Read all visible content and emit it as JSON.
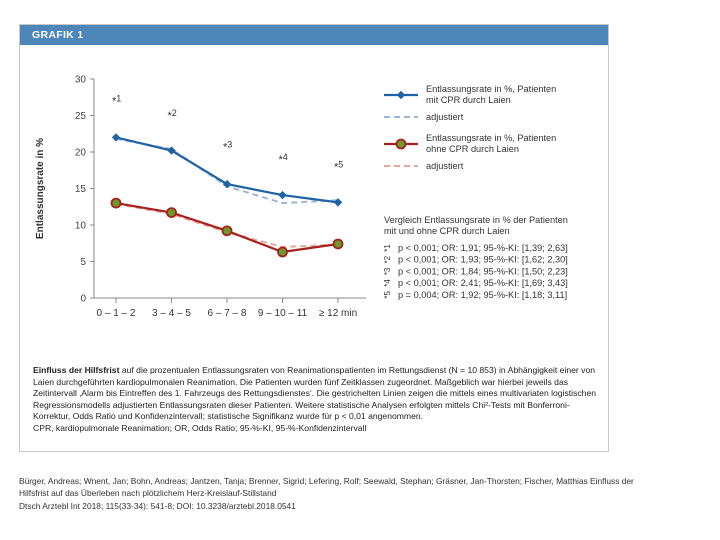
{
  "figure": {
    "header": "GRAFIK 1",
    "caption_bold": "Einfluss der Hilfsfrist",
    "caption_text": " auf die prozentualen Entlassungsraten von Reanimationspatienten im Rettungsdienst (N = 10 853) in Abhängigkeit einer von Laien durchgeführten kardiopulmonalen Reanimation. Die Patienten wurden fünf Zeitklassen zugeordnet. Maßgeblich war hierbei jeweils das Zeitintervall ‚Alarm bis Eintreffen des 1. Fahrzeugs des Rettungsdienstes‘. Die gestrichelten Linien zeigen die mittels eines multivariaten logistischen Regressionsmodells adjustierten Entlassungsraten dieser Patienten. Weitere statistische Analysen erfolgten mittels Chi²-Tests mit Bonferroni-Korrektur, Odds Ratio und Konfidenzintervall; statistische Signifikanz wurde für p < 0,01 angenommen.",
    "caption_abbrev": "CPR, kardiopulmonale Reanimation; OR, Odds Ratio; 95-%-KI, 95-%-Konfidenzintervall"
  },
  "citation": {
    "line1": "Bürger, Andreas; Wnent, Jan; Bohn, Andreas; Jantzen, Tanja; Brenner, Sigrid; Lefering, Rolf; Seewald, Stephan; Gräsner, Jan-Thorsten; Fischer, Matthias Einfluss der",
    "line2": "Hilfsfrist auf das Überleben nach plötzlichem Herz-Kreislauf-Stillstand",
    "line3": "Dtsch Arztebl Int 2018; 115(33-34): 541-8; DOI: 10.3238/arztebl.2018.0541"
  },
  "colors": {
    "header_bg": "#4d87b9",
    "blue": "#1f63a5",
    "blue_dash": "#9bb7d8",
    "red": "#a8211e",
    "red_dash": "#e8a89c",
    "green_marker": "#6c9a2a"
  },
  "chart_data": {
    "type": "line",
    "categories": [
      "0 – 1 – 2",
      "3 – 4 – 5",
      "6 – 7 – 8",
      "9 – 10 – 11",
      "≥ 12 min"
    ],
    "ylabel": "Entlassungsrate in %",
    "xlabel": "",
    "ylim": [
      0,
      30
    ],
    "yticks": [
      0,
      5,
      10,
      15,
      20,
      25,
      30
    ],
    "grid": false,
    "legend_position": "top-right",
    "series": [
      {
        "name": "Entlassungsrate in %, Patienten mit CPR durch Laien",
        "name_lines": [
          "Entlassungsrate in %, Patienten",
          "mit CPR durch Laien"
        ],
        "values": [
          22.0,
          20.2,
          15.6,
          14.1,
          13.1
        ],
        "style": "solid-blue"
      },
      {
        "name": "adjustiert",
        "name_lines": [
          "adjustiert"
        ],
        "values": [
          21.8,
          20.4,
          15.3,
          13.0,
          13.4
        ],
        "style": "dashed-blue"
      },
      {
        "name": "Entlassungsrate in %, Patienten ohne CPR durch Laien",
        "name_lines": [
          "Entlassungsrate in %, Patienten",
          "ohne CPR durch Laien"
        ],
        "values": [
          13.0,
          11.7,
          9.2,
          6.3,
          7.4
        ],
        "style": "solid-red"
      },
      {
        "name": "adjustiert",
        "name_lines": [
          "adjustiert"
        ],
        "values": [
          12.9,
          11.5,
          9.0,
          7.0,
          7.3
        ],
        "style": "dashed-red"
      }
    ],
    "annotations": [
      {
        "label": "*1",
        "category_index": 0,
        "y": 26.5
      },
      {
        "label": "*2",
        "category_index": 1,
        "y": 24.5
      },
      {
        "label": "*3",
        "category_index": 2,
        "y": 20.2
      },
      {
        "label": "*4",
        "category_index": 3,
        "y": 18.5
      },
      {
        "label": "*5",
        "category_index": 4,
        "y": 17.5
      }
    ],
    "stats_title": [
      "Vergleich Entlassungsrate in % der Patienten",
      "mit und ohne CPR durch Laien"
    ],
    "stats": [
      {
        "marker": "*1",
        "text": "p < 0,001; OR: 1,91; 95-%-KI: [1,39; 2,63]"
      },
      {
        "marker": "*2",
        "text": "p < 0,001; OR: 1,93; 95-%-KI: [1,62; 2,30]"
      },
      {
        "marker": "*3",
        "text": "p < 0,001; OR: 1,84; 95-%-KI: [1,50; 2,23]"
      },
      {
        "marker": "*4",
        "text": "p < 0,001; OR: 2,41; 95-%-KI: [1,69; 3,43]"
      },
      {
        "marker": "*5",
        "text": "p = 0,004; OR: 1,92; 95-%-KI: [1,18; 3,11]"
      }
    ]
  }
}
